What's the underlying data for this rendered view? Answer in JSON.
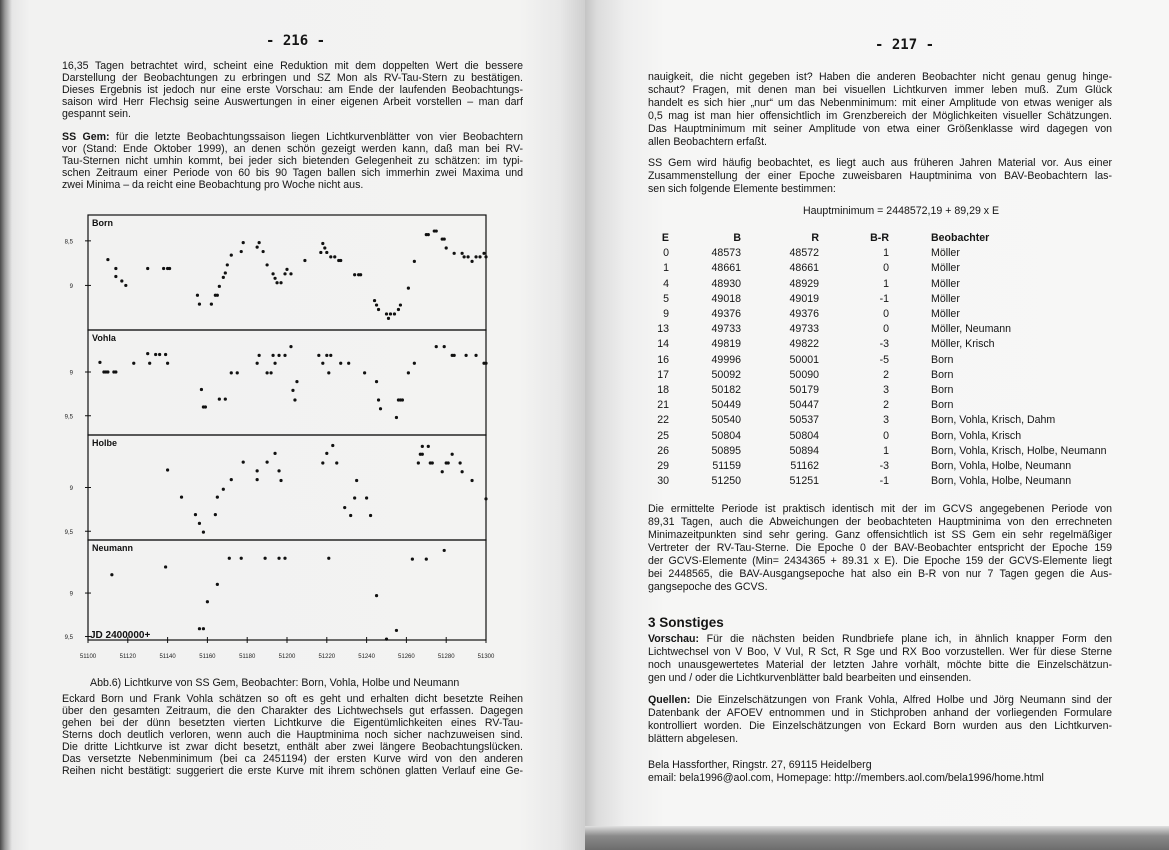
{
  "left_page": {
    "page_number": "- 216 -",
    "para1": [
      "16,35 Tagen betrachtet wird, scheint eine Reduktion mit dem doppelten Wert die bessere",
      "Darstellung der Beobachtungen zu erbringen und SZ Mon als RV-Tau-Stern zu bestätigen.",
      "Dieses Ergebnis ist jedoch nur eine erste Vorschau: am Ende der laufenden Beobachtungs-",
      "saison wird Herr Flechsig seine Auswertungen in einer eigenen Arbeit vorstellen – man darf",
      "gespannt sein."
    ],
    "para2_lead": "SS Gem:",
    "para2": [
      " für die letzte Beobachtungssaison liegen Lichtkurvenblätter von vier Beobachtern",
      "vor (Stand: Ende Oktober 1999), an denen schön gezeigt werden kann, daß man bei RV-",
      "Tau-Sternen nicht umhin kommt, bei jeder sich bietenden Gelegenheit zu schätzen: im typi-",
      "schen Zeitraum einer Periode von 60 bis 90 Tagen ballen sich immerhin zwei Maxima und",
      "zwei Minima – da reicht eine Beobachtung pro Woche nicht aus."
    ],
    "caption": "Abb.6)  Lichtkurve von SS Gem, Beobachter: Born, Vohla, Holbe und Neumann",
    "para3": [
      "Eckard Born und Frank Vohla schätzen so oft es geht und erhalten dicht besetzte Reihen",
      "über den gesamten Zeitraum, die den Charakter des Lichtwechsels gut erfassen. Dagegen",
      "gehen bei der dünn besetzten vierten Lichtkurve die Eigentümlichkeiten eines RV-Tau-",
      "Sterns doch deutlich verloren, wenn auch die Hauptminima noch sicher nachzuweisen sind.",
      "Die dritte Lichtkurve ist zwar dicht besetzt, enthält aber zwei längere Beobachtungslücken.",
      "Das versetzte Nebenminimum (bei ca 2451194) der ersten Kurve wird von den anderen",
      "Reihen nicht bestätigt: suggeriert die erste Kurve mit ihrem schönen glatten Verlauf eine Ge-"
    ]
  },
  "chart_data": {
    "type": "scatter",
    "layout": "four stacked panels sharing x axis",
    "xlabel": "JD 2400000+",
    "xlim": [
      51100,
      51300
    ],
    "x_ticks": [
      "51100",
      "51120",
      "51140",
      "51160",
      "51180",
      "51200",
      "51220",
      "51240",
      "51260",
      "51280",
      "51300"
    ],
    "y_inverted": true,
    "grid": false,
    "panels": [
      {
        "label": "Born",
        "ylim": [
          8.21,
          9.5
        ],
        "y_ticks": [
          {
            "v": 8.5,
            "t": "8,5"
          },
          {
            "v": 9,
            "t": "9"
          }
        ],
        "points": [
          [
            51110,
            8.71
          ],
          [
            51114,
            8.81
          ],
          [
            51114,
            8.9
          ],
          [
            51117,
            8.95
          ],
          [
            51119,
            9.0
          ],
          [
            51130,
            8.81
          ],
          [
            51138,
            8.81
          ],
          [
            51140,
            8.81
          ],
          [
            51141,
            8.81
          ],
          [
            51155,
            9.11
          ],
          [
            51156,
            9.21
          ],
          [
            51162,
            9.21
          ],
          [
            51164,
            9.11
          ],
          [
            51165,
            9.11
          ],
          [
            51166,
            9.01
          ],
          [
            51168,
            8.91
          ],
          [
            51169,
            8.86
          ],
          [
            51170,
            8.77
          ],
          [
            51172,
            8.66
          ],
          [
            51177,
            8.62
          ],
          [
            51178,
            8.52
          ],
          [
            51185,
            8.57
          ],
          [
            51186,
            8.52
          ],
          [
            51188,
            8.62
          ],
          [
            51190,
            8.77
          ],
          [
            51193,
            8.87
          ],
          [
            51194,
            8.92
          ],
          [
            51195,
            8.97
          ],
          [
            51197,
            8.97
          ],
          [
            51199,
            8.87
          ],
          [
            51200,
            8.82
          ],
          [
            51202,
            8.87
          ],
          [
            51209,
            8.72
          ],
          [
            51217,
            8.63
          ],
          [
            51218,
            8.53
          ],
          [
            51219,
            8.58
          ],
          [
            51220,
            8.63
          ],
          [
            51222,
            8.68
          ],
          [
            51224,
            8.68
          ],
          [
            51226,
            8.72
          ],
          [
            51227,
            8.72
          ],
          [
            51234,
            8.88
          ],
          [
            51236,
            8.88
          ],
          [
            51237,
            8.88
          ],
          [
            51244,
            9.17
          ],
          [
            51245,
            9.22
          ],
          [
            51246,
            9.27
          ],
          [
            51250,
            9.32
          ],
          [
            51251,
            9.37
          ],
          [
            51252,
            9.32
          ],
          [
            51254,
            9.32
          ],
          [
            51256,
            9.27
          ],
          [
            51257,
            9.22
          ],
          [
            51261,
            9.03
          ],
          [
            51264,
            8.73
          ],
          [
            51270,
            8.43
          ],
          [
            51271,
            8.43
          ],
          [
            51274,
            8.39
          ],
          [
            51275,
            8.39
          ],
          [
            51278,
            8.48
          ],
          [
            51279,
            8.48
          ],
          [
            51280,
            8.58
          ],
          [
            51284,
            8.64
          ],
          [
            51288,
            8.64
          ],
          [
            51289,
            8.68
          ],
          [
            51291,
            8.68
          ],
          [
            51293,
            8.73
          ],
          [
            51295,
            8.68
          ],
          [
            51297,
            8.68
          ],
          [
            51299,
            8.64
          ],
          [
            51300,
            8.68
          ]
        ]
      },
      {
        "label": "Vohla",
        "ylim": [
          8.52,
          9.72
        ],
        "y_ticks": [
          {
            "v": 9,
            "t": "9"
          },
          {
            "v": 9.5,
            "t": "9,5"
          }
        ],
        "points": [
          [
            51106,
            8.89
          ],
          [
            51108,
            9.0
          ],
          [
            51109,
            9.0
          ],
          [
            51110,
            9.0
          ],
          [
            51113,
            9.0
          ],
          [
            51114,
            9.0
          ],
          [
            51123,
            8.9
          ],
          [
            51130,
            8.79
          ],
          [
            51131,
            8.9
          ],
          [
            51134,
            8.8
          ],
          [
            51136,
            8.8
          ],
          [
            51139,
            8.8
          ],
          [
            51140,
            8.9
          ],
          [
            51157,
            9.2
          ],
          [
            51158,
            9.4
          ],
          [
            51159,
            9.4
          ],
          [
            51166,
            9.31
          ],
          [
            51169,
            9.31
          ],
          [
            51172,
            9.01
          ],
          [
            51175,
            9.01
          ],
          [
            51185,
            8.9
          ],
          [
            51186,
            8.81
          ],
          [
            51190,
            9.01
          ],
          [
            51192,
            9.01
          ],
          [
            51193,
            8.81
          ],
          [
            51194,
            8.9
          ],
          [
            51196,
            8.81
          ],
          [
            51199,
            8.81
          ],
          [
            51202,
            8.71
          ],
          [
            51203,
            9.21
          ],
          [
            51204,
            9.32
          ],
          [
            51205,
            9.11
          ],
          [
            51216,
            8.81
          ],
          [
            51218,
            8.9
          ],
          [
            51220,
            8.81
          ],
          [
            51221,
            9.01
          ],
          [
            51222,
            8.81
          ],
          [
            51227,
            8.9
          ],
          [
            51231,
            8.9
          ],
          [
            51239,
            9.01
          ],
          [
            51245,
            9.11
          ],
          [
            51246,
            9.32
          ],
          [
            51247,
            9.42
          ],
          [
            51255,
            9.52
          ],
          [
            51256,
            9.32
          ],
          [
            51257,
            9.32
          ],
          [
            51258,
            9.32
          ],
          [
            51261,
            9.01
          ],
          [
            51264,
            8.9
          ],
          [
            51275,
            8.71
          ],
          [
            51279,
            8.71
          ],
          [
            51283,
            8.81
          ],
          [
            51284,
            8.81
          ],
          [
            51290,
            8.81
          ],
          [
            51295,
            8.81
          ],
          [
            51299,
            8.9
          ],
          [
            51300,
            8.9
          ]
        ]
      },
      {
        "label": "Holbe",
        "ylim": [
          8.4,
          9.6
        ],
        "y_ticks": [
          {
            "v": 9,
            "t": "9"
          },
          {
            "v": 9.5,
            "t": "9,5"
          }
        ],
        "points": [
          [
            51140,
            8.8
          ],
          [
            51147,
            9.11
          ],
          [
            51154,
            9.31
          ],
          [
            51156,
            9.41
          ],
          [
            51158,
            9.51
          ],
          [
            51164,
            9.31
          ],
          [
            51165,
            9.11
          ],
          [
            51168,
            9.02
          ],
          [
            51172,
            8.91
          ],
          [
            51178,
            8.71
          ],
          [
            51185,
            8.81
          ],
          [
            51185,
            8.91
          ],
          [
            51190,
            8.71
          ],
          [
            51194,
            8.61
          ],
          [
            51196,
            8.81
          ],
          [
            51197,
            8.92
          ],
          [
            51218,
            8.72
          ],
          [
            51220,
            8.61
          ],
          [
            51223,
            8.52
          ],
          [
            51225,
            8.72
          ],
          [
            51229,
            9.23
          ],
          [
            51232,
            9.32
          ],
          [
            51234,
            9.12
          ],
          [
            51235,
            8.92
          ],
          [
            51240,
            9.12
          ],
          [
            51242,
            9.32
          ],
          [
            51266,
            8.72
          ],
          [
            51267,
            8.62
          ],
          [
            51268,
            8.53
          ],
          [
            51268,
            8.62
          ],
          [
            51271,
            8.53
          ],
          [
            51272,
            8.72
          ],
          [
            51273,
            8.72
          ],
          [
            51278,
            8.82
          ],
          [
            51280,
            8.72
          ],
          [
            51281,
            8.72
          ],
          [
            51283,
            8.62
          ],
          [
            51287,
            8.72
          ],
          [
            51288,
            8.82
          ],
          [
            51293,
            8.92
          ],
          [
            51300,
            9.13
          ]
        ]
      },
      {
        "label": "Neumann",
        "ylim": [
          8.39,
          9.54
        ],
        "y_ticks": [
          {
            "v": 9,
            "t": "9"
          },
          {
            "v": 9.5,
            "t": "9,5"
          }
        ],
        "points": [
          [
            51112,
            8.79
          ],
          [
            51139,
            8.7
          ],
          [
            51156,
            9.41
          ],
          [
            51158,
            9.41
          ],
          [
            51160,
            9.1
          ],
          [
            51165,
            8.9
          ],
          [
            51171,
            8.6
          ],
          [
            51177,
            8.6
          ],
          [
            51189,
            8.6
          ],
          [
            51196,
            8.6
          ],
          [
            51199,
            8.6
          ],
          [
            51221,
            8.6
          ],
          [
            51245,
            9.03
          ],
          [
            51250,
            9.53
          ],
          [
            51255,
            9.43
          ],
          [
            51263,
            8.61
          ],
          [
            51270,
            8.61
          ],
          [
            51279,
            8.51
          ]
        ]
      }
    ]
  },
  "right_page": {
    "page_number": "- 217 -",
    "para1": [
      "nauigkeit, die nicht gegeben ist? Haben die anderen Beobachter nicht genau genug hinge-",
      "schaut? Fragen, mit denen man bei visuellen Lichtkurven immer leben muß. Zum Glück",
      "handelt es sich hier „nur“ um das Nebenminimum: mit einer Amplitude von etwas weniger als",
      "0,5 mag ist man hier offensichtlich im Grenzbereich der Möglichkeiten visueller Schätzungen.",
      "Das Hauptminimum mit seiner Amplitude von etwa einer Größenklasse wird dagegen von",
      "allen Beobachtern erfaßt."
    ],
    "para2": [
      "SS Gem wird häufig beobachtet, es liegt auch aus früheren Jahren Material vor. Aus einer",
      "Zusammenstellung der einer Epoche zuweisbaren Hauptminima von BAV-Beobachtern las-",
      "sen sich folgende Elemente bestimmen:"
    ],
    "formula": "Hauptminimum = 2448572,19 + 89,29 x E",
    "table": {
      "headers": [
        "E",
        "B",
        "R",
        "B-R",
        "Beobachter"
      ],
      "rows": [
        [
          "0",
          "48573",
          "48572",
          "1",
          "Möller"
        ],
        [
          "1",
          "48661",
          "48661",
          "0",
          "Möller"
        ],
        [
          "4",
          "48930",
          "48929",
          "1",
          "Möller"
        ],
        [
          "5",
          "49018",
          "49019",
          "-1",
          "Möller"
        ],
        [
          "9",
          "49376",
          "49376",
          "0",
          "Möller"
        ],
        [
          "13",
          "49733",
          "49733",
          "0",
          "Möller, Neumann"
        ],
        [
          "14",
          "49819",
          "49822",
          "-3",
          "Möller, Krisch"
        ],
        [
          "16",
          "49996",
          "50001",
          "-5",
          "Born"
        ],
        [
          "17",
          "50092",
          "50090",
          "2",
          "Born"
        ],
        [
          "18",
          "50182",
          "50179",
          "3",
          "Born"
        ],
        [
          "21",
          "50449",
          "50447",
          "2",
          "Born"
        ],
        [
          "22",
          "50540",
          "50537",
          "3",
          "Born, Vohla, Krisch, Dahm"
        ],
        [
          "25",
          "50804",
          "50804",
          "0",
          "Born, Vohla, Krisch"
        ],
        [
          "26",
          "50895",
          "50894",
          "1",
          "Born, Vohla, Krisch, Holbe, Neumann"
        ],
        [
          "29",
          "51159",
          "51162",
          "-3",
          "Born, Vohla, Holbe, Neumann"
        ],
        [
          "30",
          "51250",
          "51251",
          "-1",
          "Born, Vohla, Holbe, Neumann"
        ]
      ]
    },
    "para3": [
      "Die ermittelte Periode ist praktisch identisch mit der im GCVS angegebenen Periode von",
      "89,31 Tagen, auch die Abweichungen der beobachteten Hauptminima von den errechneten",
      "Minimazeitpunkten sind sehr gering. Ganz offensichtlich ist SS Gem ein sehr regelmäßiger",
      "Vertreter der RV-Tau-Sterne. Die Epoche 0 der BAV-Beobachter entspricht der Epoche 159",
      "der GCVS-Elemente (Min= 2434365 + 89.31 x E). Die Epoche 159 der GCVS-Elemente liegt",
      "bei 2448565, die BAV-Ausgangsepoche hat also ein B-R von nur 7 Tagen gegen die Aus-",
      "gangsepoche des GCVS."
    ],
    "section_heading": "3  Sonstiges",
    "vorschau_lead": "Vorschau:",
    "vorschau": [
      " Für die nächsten beiden Rundbriefe plane ich, in ähnlich knapper Form den",
      "Lichtwechsel von V Boo, V Vul, R Sct, R Sge und RX Boo vorzustellen. Wer für diese Sterne",
      "noch unausgewertetes Material der letzten Jahre vorhält, möchte bitte die Einzelschätzun-",
      "gen und / oder die Lichtkurvenblätter bald bearbeiten und einsenden."
    ],
    "quellen_lead": "Quellen:",
    "quellen": [
      " Die Einzelschätzungen von Frank Vohla, Alfred Holbe und Jörg Neumann sind der",
      "Datenbank der AFOEV entnommen und in Stichproben anhand der vorliegenden Formulare",
      "kontrolliert worden. Die Einzelschätzungen von Eckard Born wurden aus den Lichtkurven-",
      "blättern abgelesen."
    ],
    "footer_address": "Bela Hassforther,  Ringstr. 27,  69115 Heidelberg",
    "footer_contact": "email: bela1996@aol.com, Homepage: http://members.aol.com/bela1996/home.html"
  }
}
